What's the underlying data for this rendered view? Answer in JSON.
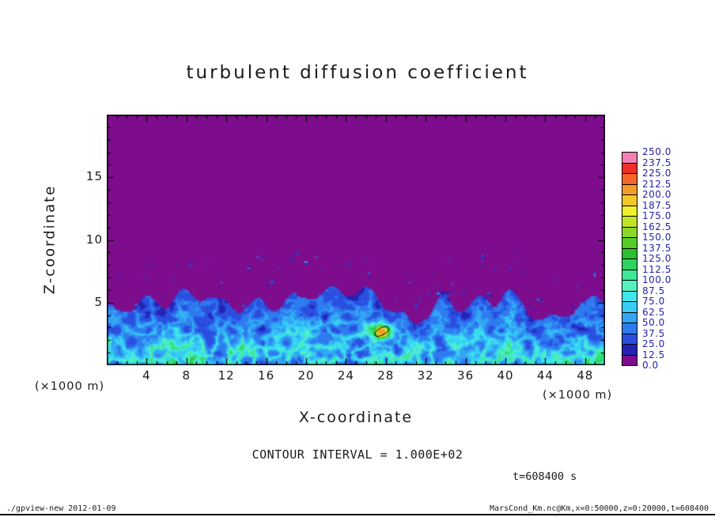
{
  "title": "turbulent diffusion coefficient",
  "xlabel": "X-coordinate",
  "ylabel": "Z-coordinate",
  "x_unit": "(×1000 m)",
  "contour_note": "CONTOUR INTERVAL = 1.000E+02",
  "time_label": "t=608400 s",
  "footer_left": "./gpview-new  2012-01-09",
  "footer_right": "MarsCond_Km.nc@Km,x=0:50000,z=0:20000,t=608400",
  "colors": {
    "background": "#ffffff",
    "frame": "#000000",
    "text": "#1a1a1a",
    "colorbar_label_text": "#2323ab",
    "field_background_purple": "#7d0d8c"
  },
  "chart_data": {
    "type": "heatmap",
    "title": "turbulent diffusion coefficient",
    "xlabel": "X-coordinate",
    "ylabel": "Z-coordinate",
    "axis_unit": "(×1000 m)",
    "x_ticks": [
      4,
      8,
      12,
      16,
      20,
      24,
      28,
      32,
      36,
      40,
      44,
      48
    ],
    "z_ticks": [
      5,
      10,
      15
    ],
    "x_range": [
      0,
      50
    ],
    "z_range": [
      0,
      20
    ],
    "x_range_m": [
      0,
      50000
    ],
    "z_range_m": [
      0,
      20000
    ],
    "time_s": 608400,
    "contour_interval": 100.0,
    "colorbar": {
      "levels": [
        0.0,
        12.5,
        25.0,
        37.5,
        50.0,
        62.5,
        75.0,
        87.5,
        100.0,
        112.5,
        125.0,
        137.5,
        150.0,
        162.5,
        175.0,
        187.5,
        200.0,
        212.5,
        225.0,
        237.5,
        250.0
      ],
      "colors": [
        "#7d0d8c",
        "#2222b4",
        "#2a4fe0",
        "#2e7bf0",
        "#32a5f5",
        "#37cdf7",
        "#3ee8e8",
        "#55f0c0",
        "#3ce896",
        "#2ed25f",
        "#2bbe32",
        "#55cc28",
        "#8cd828",
        "#c0e428",
        "#eef028",
        "#f2c828",
        "#f49a28",
        "#f56628",
        "#ee2f28",
        "#f580b4"
      ]
    },
    "field_summary": {
      "description": "Near-zero diffusion coefficient (purple, 0-12.5) everywhere above an undulating turbulent boundary layer top at z ≈ 3500-7000 m. Below the boundary, turbulent structures with values mostly 12.5-150 (blues and cyans, brightest filaments near z = 1000-3000 m). Scattered small specks of 12.5-75 up to z ≈ 9000 m. One local maximum ≈ 150-200 near x ≈ 27500 m, z ≈ 2700 m, enclosed by the 100 contour line.",
      "background_value_range": [
        0,
        12.5
      ],
      "boundary_height_m_range": [
        3500,
        7000
      ],
      "local_max": {
        "x_m": 27500,
        "z_m": 2700,
        "approx_value": 180
      }
    }
  }
}
